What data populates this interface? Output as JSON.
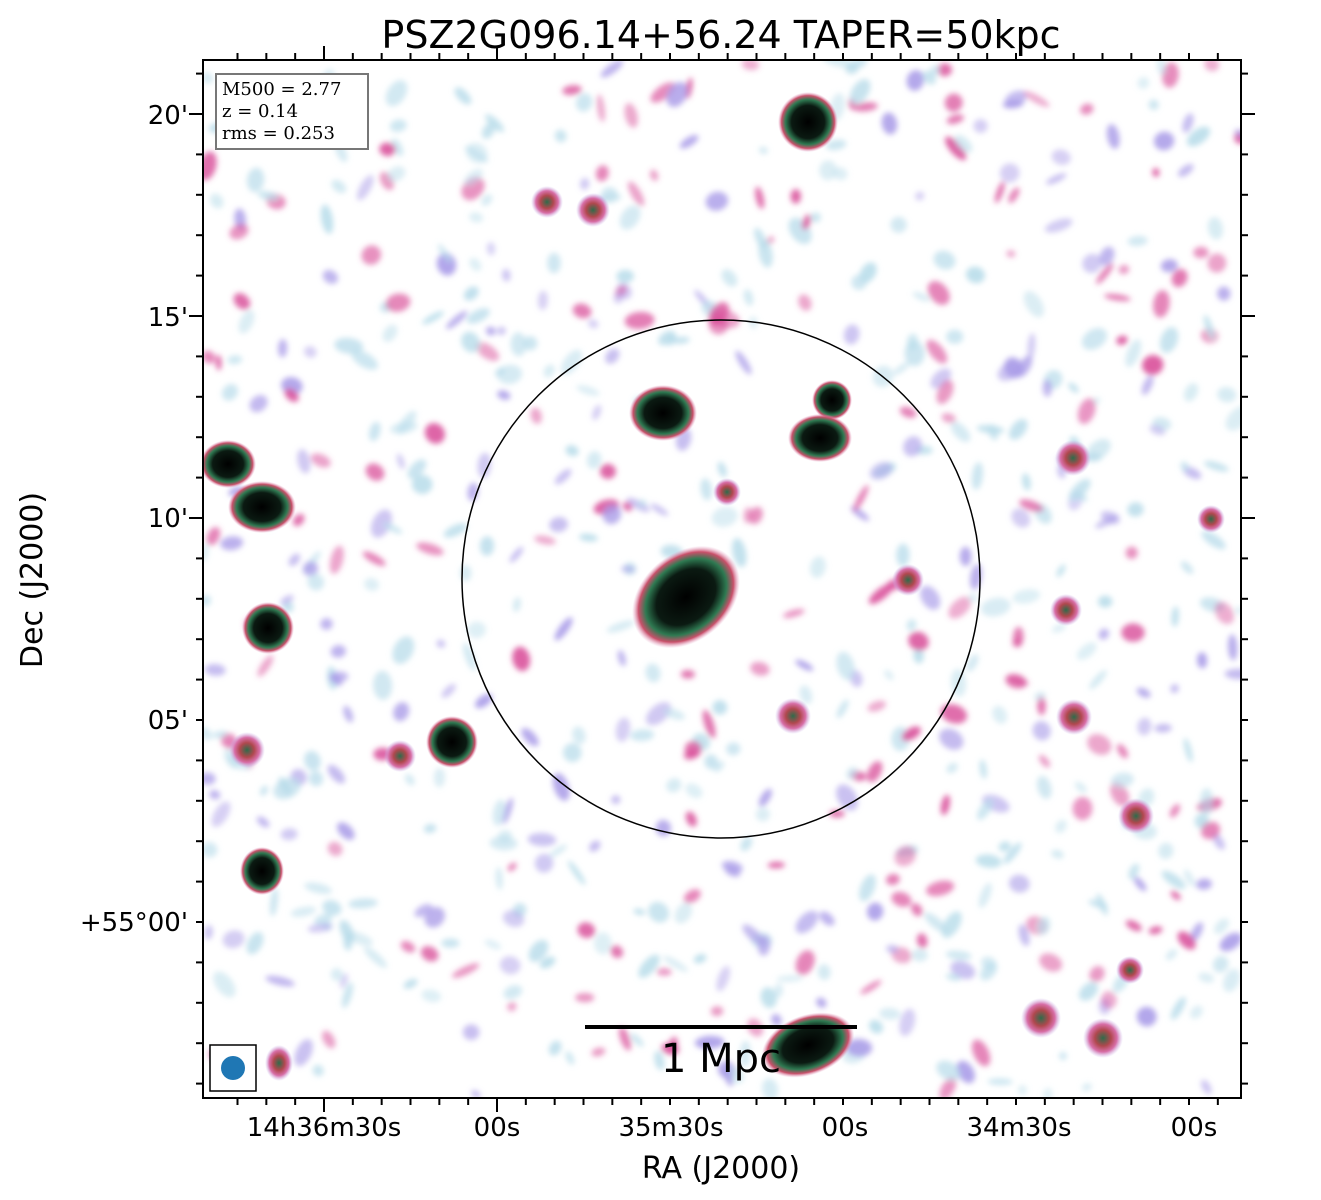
{
  "title": "PSZ2G096.14+56.24 TAPER=50kpc",
  "axes": {
    "xlabel": "RA (J2000)",
    "ylabel": "Dec (J2000)",
    "xticks": [
      "14h36m30s",
      "00s",
      "35m30s",
      "00s",
      "34m30s",
      "00s"
    ],
    "yticks": [
      "20'",
      "15'",
      "10'",
      "05'",
      "+55°00'"
    ]
  },
  "info_box": {
    "line1": "M500 = 2.77",
    "line2": "z = 0.14",
    "line3": "rms = 0.253"
  },
  "scalebar": {
    "label": "1 Mpc"
  },
  "colors": {
    "source_core": "#000000",
    "source_ring": "#2f7a52",
    "halo_magenta": "#d94f9a",
    "halo_purple": "#a99be8",
    "noise_blue": "#b8dcea",
    "beam": "#1f77b4"
  }
}
